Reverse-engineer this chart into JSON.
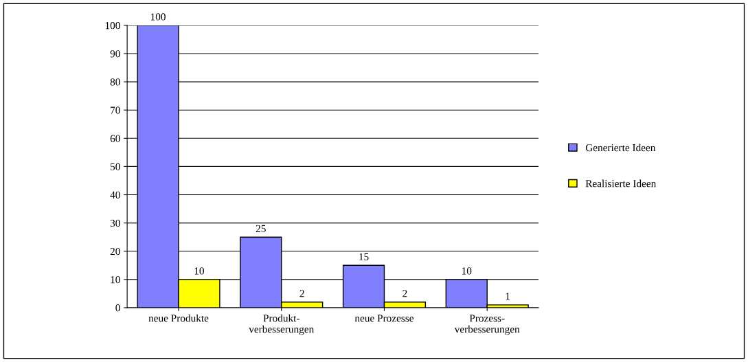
{
  "chart_data": {
    "type": "bar",
    "categories": [
      "neue Produkte",
      "Produkt-\nverbesserungen",
      "neue Prozesse",
      "Prozess-\nverbesserungen"
    ],
    "series": [
      {
        "name": "Generierte Ideen",
        "color": "#8080ff",
        "values": [
          100,
          25,
          15,
          10
        ]
      },
      {
        "name": "Realisierte Ideen",
        "color": "#ffff00",
        "values": [
          10,
          2,
          2,
          1
        ]
      }
    ],
    "ylim": [
      0,
      100
    ],
    "yticks": [
      0,
      10,
      20,
      30,
      40,
      50,
      60,
      70,
      80,
      90,
      100
    ],
    "grid": "y",
    "legend": "right",
    "data_labels": true
  }
}
